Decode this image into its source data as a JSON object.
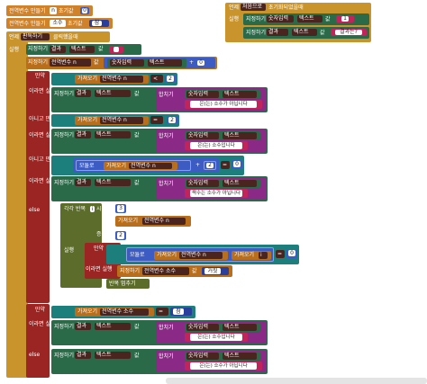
{
  "globals": [
    {
      "label": "전역변수 만들기",
      "name": "n",
      "init_label": "초기값",
      "value": "0"
    },
    {
      "label": "전역변수 만들기",
      "name": "소수",
      "init_label": "초기값",
      "value": "참"
    }
  ],
  "init_event": {
    "when": "언제",
    "screen": "처음으로",
    "event": "초기화되었을때",
    "do": "실행",
    "row1": {
      "set": "지정하기",
      "target": "숫자입력",
      "dot": ".",
      "prop": "텍스트",
      "to": "값",
      "value": "1"
    },
    "row2": {
      "set": "지정하기",
      "target": "결과",
      "dot": ".",
      "prop": "텍스트",
      "to": "값",
      "value": "결과는?"
    }
  },
  "click_event": {
    "when": "언제",
    "button": "판독하기",
    "event": "클릭했을때",
    "do": "실행",
    "set1": {
      "set": "지정하기",
      "target": "결과",
      "prop": "텍스트",
      "to": "값",
      "value": ""
    },
    "set2": {
      "set": "지정하기",
      "var": "전역변수 n",
      "to": "값",
      "obj": "숫자입력",
      "prop": "텍스트",
      "add": "0"
    },
    "if_label": "만약",
    "then_label": "이라면 실행",
    "elseif_label": "아니고 만약",
    "else_label": "else",
    "get_label": "가져오기",
    "var_n": "전역변수 n",
    "var_prime": "전역변수 소수",
    "join_label": "합치기",
    "cond1": {
      "op": "<",
      "num": "2"
    },
    "cond2": {
      "op": "=",
      "num": "2"
    },
    "cond3": {
      "mod": "모듈로",
      "op": "+",
      "num": "2",
      "eq": "=",
      "rhs": "0"
    },
    "msg_not_prime": "은(는) 소수가 아닙니다",
    "msg_prime": "은(는) 소수입니다",
    "msg_even": "짝수는 소수가 아닙니다",
    "loop": {
      "label": "각각 반복",
      "var": "i",
      "from": "시작",
      "from_val": "3",
      "to": "끝",
      "step": "증가",
      "step_val": "2"
    },
    "inner_if": {
      "mod": "모듈로",
      "var_i": "i",
      "eq": "=",
      "rhs": "0"
    },
    "set_prime_false": {
      "set": "지정하기",
      "var": "전역변수 소수",
      "to": "값",
      "value": "거짓"
    },
    "break": "반복 멈추기",
    "final_cond": {
      "op": "=",
      "value": "참"
    },
    "do_label": "실행",
    "result": "결과",
    "prop": "텍스트",
    "num_input": "숫자입력",
    "to": "값"
  }
}
